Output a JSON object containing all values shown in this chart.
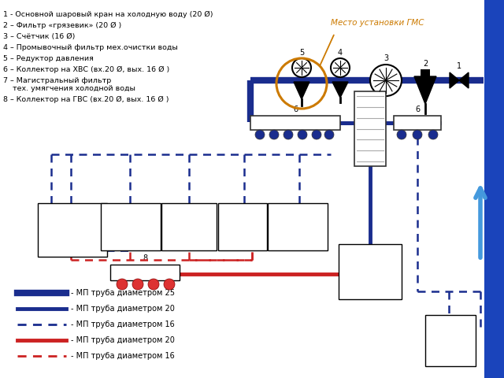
{
  "bg_color": "#ffffff",
  "legend_items": [
    {
      "label": "- МП труба диаметром 25",
      "color": "#1a2d8e",
      "lw": 6,
      "ls": "solid"
    },
    {
      "label": "- МП труба диаметром 20",
      "color": "#1a2d8e",
      "lw": 3.5,
      "ls": "solid"
    },
    {
      "label": "- МП труба диаметром 16",
      "color": "#1a2d8e",
      "lw": 2,
      "ls": "dashed"
    },
    {
      "label": "- МП труба диаметром 20",
      "color": "#cc2222",
      "lw": 3.5,
      "ls": "solid"
    },
    {
      "label": "- МП труба диаметром 16",
      "color": "#cc2222",
      "lw": 2,
      "ls": "dashed"
    }
  ],
  "annotations_left": [
    "1 - Основной шаровый кран на холодную воду (20 Ø)",
    "2 – Фильтр «грязевик» (20 Ø )",
    "3 – Счётчик (16 Ø)",
    "4 – Промывочный фильтр мех.очистки воды",
    "5 – Редуктор давления",
    "6 – Коллектор на ХВС (вх.20 Ø, вых. 16 Ø )",
    "7 – Магистральный фильтр",
    "    тех. умягчения холодной воды",
    "8 – Коллектор на ГВС (вх.20 Ø, вых. 16 Ø )"
  ],
  "place_label": "Место установки ГМС",
  "blue_thick": "#1a2d8e",
  "blue_medium": "#1a2d8e",
  "blue_dash": "#1a2d8e",
  "red_solid": "#cc2222",
  "red_dash": "#cc2222",
  "orange_color": "#cc7a00",
  "wall_color": "#1a44bb",
  "arrow_color": "#4499dd"
}
